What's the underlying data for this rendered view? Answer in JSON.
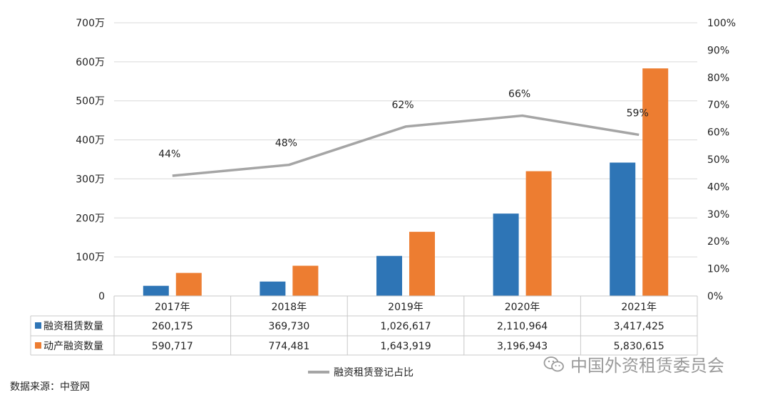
{
  "chart_data": {
    "type": "bar",
    "categories": [
      "2017年",
      "2018年",
      "2019年",
      "2020年",
      "2021年"
    ],
    "series": [
      {
        "name": "融资租赁数量",
        "axis": "left",
        "color": "#2e75b6",
        "values": [
          260175,
          369730,
          1026617,
          2110964,
          3417425
        ],
        "formatted": [
          "260,175",
          "369,730",
          "1,026,617",
          "2,110,964",
          "3,417,425"
        ]
      },
      {
        "name": "动产融资数量",
        "axis": "left",
        "color": "#ed7d31",
        "values": [
          590717,
          774481,
          1643919,
          3196943,
          5830615
        ],
        "formatted": [
          "590,717",
          "774,481",
          "1,643,919",
          "3,196,943",
          "5,830,615"
        ]
      }
    ],
    "line_series": {
      "name": "融资租赁登记占比",
      "axis": "right",
      "color": "#a5a5a5",
      "values": [
        44,
        48,
        62,
        66,
        59
      ],
      "labels": [
        "44%",
        "48%",
        "62%",
        "66%",
        "59%"
      ]
    },
    "y_left": {
      "min": 0,
      "max": 7000000,
      "ticks": [
        0,
        1000000,
        2000000,
        3000000,
        4000000,
        5000000,
        6000000,
        7000000
      ],
      "tick_labels": [
        "0",
        "100万",
        "200万",
        "300万",
        "400万",
        "500万",
        "600万",
        "700万"
      ]
    },
    "y_right": {
      "min": 0,
      "max": 100,
      "ticks": [
        0,
        10,
        20,
        30,
        40,
        50,
        60,
        70,
        80,
        90,
        100
      ],
      "tick_labels": [
        "0%",
        "10%",
        "20%",
        "30%",
        "40%",
        "50%",
        "60%",
        "70%",
        "80%",
        "90%",
        "100%"
      ]
    },
    "grid": true,
    "legend_position": "bottom"
  },
  "source_text": "数据来源：中登网",
  "watermark_text": "中国外资租赁委员会"
}
